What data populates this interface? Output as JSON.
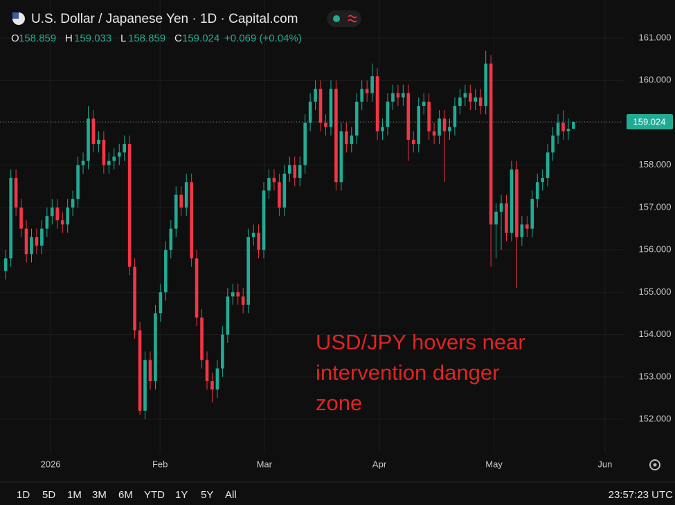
{
  "header": {
    "title": "U.S. Dollar / Japanese Yen · 1D · Capital.com",
    "ohlc_labels": [
      "O",
      "H",
      "L",
      "C"
    ],
    "change": "+0.069 (+0.04%)"
  },
  "chart_data": {
    "type": "candlestick",
    "annotation": [
      "USD/JPY hovers near",
      "intervention danger",
      "zone"
    ],
    "up_color": "#22ab94",
    "down_color": "#f23645",
    "grid": true,
    "xlim": [
      -1.1,
      119.6
    ],
    "xticks": [
      {
        "value": 8.7,
        "label": "2026"
      },
      {
        "value": 29.9,
        "label": "Feb"
      },
      {
        "value": 50.1,
        "label": "Mar"
      },
      {
        "value": 72.4,
        "label": "Apr"
      },
      {
        "value": 94.6,
        "label": "May"
      },
      {
        "value": 116.1,
        "label": "Jun"
      }
    ],
    "ylim": [
      151.2,
      161.9
    ],
    "yticks": [
      {
        "value": 152,
        "label": "152.000"
      },
      {
        "value": 153,
        "label": "153.000"
      },
      {
        "value": 154,
        "label": "154.000"
      },
      {
        "value": 155,
        "label": "155.000"
      },
      {
        "value": 156,
        "label": "156.000"
      },
      {
        "value": 157,
        "label": "157.000"
      },
      {
        "value": 158,
        "label": "158.000"
      },
      {
        "value": 159,
        "label": "159.000"
      },
      {
        "value": 160,
        "label": "160.000"
      },
      {
        "value": 161,
        "label": "161.000"
      }
    ],
    "candles": [
      {
        "o": 155.5,
        "h": 156.0,
        "l": 155.3,
        "c": 155.8
      },
      {
        "o": 155.8,
        "h": 157.9,
        "l": 155.6,
        "c": 157.7
      },
      {
        "o": 157.7,
        "h": 157.9,
        "l": 156.8,
        "c": 157.0
      },
      {
        "o": 157.0,
        "h": 157.2,
        "l": 156.3,
        "c": 156.5
      },
      {
        "o": 156.5,
        "h": 156.7,
        "l": 155.7,
        "c": 155.9
      },
      {
        "o": 155.9,
        "h": 156.5,
        "l": 155.7,
        "c": 156.3
      },
      {
        "o": 156.3,
        "h": 156.5,
        "l": 155.9,
        "c": 156.1
      },
      {
        "o": 156.1,
        "h": 156.7,
        "l": 155.9,
        "c": 156.5
      },
      {
        "o": 156.5,
        "h": 157.0,
        "l": 156.3,
        "c": 156.8
      },
      {
        "o": 156.8,
        "h": 157.2,
        "l": 156.6,
        "c": 157.0
      },
      {
        "o": 157.0,
        "h": 157.2,
        "l": 156.5,
        "c": 156.7
      },
      {
        "o": 156.7,
        "h": 156.9,
        "l": 156.4,
        "c": 156.6
      },
      {
        "o": 156.6,
        "h": 157.2,
        "l": 156.4,
        "c": 157.0
      },
      {
        "o": 157.0,
        "h": 157.4,
        "l": 156.8,
        "c": 157.2
      },
      {
        "o": 157.2,
        "h": 158.2,
        "l": 157.0,
        "c": 158.0
      },
      {
        "o": 158.0,
        "h": 158.3,
        "l": 157.8,
        "c": 158.1
      },
      {
        "o": 158.1,
        "h": 159.4,
        "l": 157.9,
        "c": 159.1
      },
      {
        "o": 159.1,
        "h": 159.3,
        "l": 158.3,
        "c": 158.5
      },
      {
        "o": 158.5,
        "h": 158.8,
        "l": 158.3,
        "c": 158.6
      },
      {
        "o": 158.6,
        "h": 158.8,
        "l": 157.8,
        "c": 158.0
      },
      {
        "o": 158.0,
        "h": 158.3,
        "l": 157.8,
        "c": 158.1
      },
      {
        "o": 158.1,
        "h": 158.4,
        "l": 157.9,
        "c": 158.2
      },
      {
        "o": 158.2,
        "h": 158.5,
        "l": 158.0,
        "c": 158.3
      },
      {
        "o": 158.3,
        "h": 158.7,
        "l": 158.1,
        "c": 158.5
      },
      {
        "o": 158.5,
        "h": 158.7,
        "l": 155.4,
        "c": 155.6
      },
      {
        "o": 155.6,
        "h": 155.8,
        "l": 153.9,
        "c": 154.1
      },
      {
        "o": 154.1,
        "h": 154.3,
        "l": 152.1,
        "c": 152.2
      },
      {
        "o": 152.2,
        "h": 153.6,
        "l": 152.0,
        "c": 153.4
      },
      {
        "o": 153.4,
        "h": 153.6,
        "l": 152.7,
        "c": 152.9
      },
      {
        "o": 152.9,
        "h": 154.7,
        "l": 152.7,
        "c": 154.5
      },
      {
        "o": 154.5,
        "h": 155.2,
        "l": 154.3,
        "c": 155.0
      },
      {
        "o": 155.0,
        "h": 156.2,
        "l": 154.8,
        "c": 156.0
      },
      {
        "o": 156.0,
        "h": 156.7,
        "l": 155.8,
        "c": 156.5
      },
      {
        "o": 156.5,
        "h": 157.5,
        "l": 156.3,
        "c": 157.3
      },
      {
        "o": 157.3,
        "h": 157.5,
        "l": 156.8,
        "c": 157.0
      },
      {
        "o": 157.0,
        "h": 157.8,
        "l": 156.8,
        "c": 157.6
      },
      {
        "o": 157.6,
        "h": 157.8,
        "l": 155.6,
        "c": 155.8
      },
      {
        "o": 155.8,
        "h": 156.0,
        "l": 154.2,
        "c": 154.4
      },
      {
        "o": 154.4,
        "h": 154.6,
        "l": 153.2,
        "c": 153.4
      },
      {
        "o": 153.4,
        "h": 153.6,
        "l": 152.7,
        "c": 152.9
      },
      {
        "o": 152.9,
        "h": 153.1,
        "l": 152.4,
        "c": 152.7
      },
      {
        "o": 152.7,
        "h": 153.4,
        "l": 152.5,
        "c": 153.2
      },
      {
        "o": 153.2,
        "h": 154.2,
        "l": 153.0,
        "c": 154.0
      },
      {
        "o": 154.0,
        "h": 155.1,
        "l": 153.8,
        "c": 154.9
      },
      {
        "o": 154.9,
        "h": 155.2,
        "l": 154.7,
        "c": 155.0
      },
      {
        "o": 155.0,
        "h": 155.2,
        "l": 154.7,
        "c": 154.9
      },
      {
        "o": 154.9,
        "h": 155.1,
        "l": 154.5,
        "c": 154.7
      },
      {
        "o": 154.7,
        "h": 156.5,
        "l": 154.5,
        "c": 156.3
      },
      {
        "o": 156.3,
        "h": 156.6,
        "l": 156.1,
        "c": 156.4
      },
      {
        "o": 156.4,
        "h": 156.6,
        "l": 155.8,
        "c": 156.0
      },
      {
        "o": 156.0,
        "h": 157.6,
        "l": 155.8,
        "c": 157.4
      },
      {
        "o": 157.4,
        "h": 157.9,
        "l": 157.2,
        "c": 157.7
      },
      {
        "o": 157.7,
        "h": 157.9,
        "l": 157.4,
        "c": 157.6
      },
      {
        "o": 157.6,
        "h": 157.8,
        "l": 156.8,
        "c": 157.0
      },
      {
        "o": 157.0,
        "h": 158.0,
        "l": 156.8,
        "c": 157.8
      },
      {
        "o": 157.8,
        "h": 158.2,
        "l": 157.6,
        "c": 158.0
      },
      {
        "o": 158.0,
        "h": 158.2,
        "l": 157.5,
        "c": 157.7
      },
      {
        "o": 157.7,
        "h": 158.2,
        "l": 157.5,
        "c": 158.0
      },
      {
        "o": 158.0,
        "h": 159.2,
        "l": 157.8,
        "c": 159.0
      },
      {
        "o": 159.0,
        "h": 159.7,
        "l": 158.8,
        "c": 159.5
      },
      {
        "o": 159.5,
        "h": 160.0,
        "l": 159.3,
        "c": 159.8
      },
      {
        "o": 159.8,
        "h": 160.0,
        "l": 158.8,
        "c": 159.0
      },
      {
        "o": 159.0,
        "h": 159.2,
        "l": 158.7,
        "c": 158.9
      },
      {
        "o": 158.9,
        "h": 160.0,
        "l": 158.7,
        "c": 159.8
      },
      {
        "o": 159.8,
        "h": 160.0,
        "l": 157.4,
        "c": 157.6
      },
      {
        "o": 157.6,
        "h": 159.0,
        "l": 157.4,
        "c": 158.8
      },
      {
        "o": 158.8,
        "h": 159.0,
        "l": 158.3,
        "c": 158.5
      },
      {
        "o": 158.5,
        "h": 158.9,
        "l": 158.3,
        "c": 158.7
      },
      {
        "o": 158.7,
        "h": 159.7,
        "l": 158.5,
        "c": 159.5
      },
      {
        "o": 159.5,
        "h": 160.0,
        "l": 159.3,
        "c": 159.8
      },
      {
        "o": 159.8,
        "h": 160.0,
        "l": 159.5,
        "c": 159.7
      },
      {
        "o": 159.7,
        "h": 160.4,
        "l": 159.5,
        "c": 160.1
      },
      {
        "o": 160.1,
        "h": 160.3,
        "l": 158.6,
        "c": 158.8
      },
      {
        "o": 158.8,
        "h": 159.1,
        "l": 158.6,
        "c": 158.9
      },
      {
        "o": 158.9,
        "h": 159.7,
        "l": 158.7,
        "c": 159.5
      },
      {
        "o": 159.5,
        "h": 159.9,
        "l": 159.3,
        "c": 159.7
      },
      {
        "o": 159.7,
        "h": 159.9,
        "l": 159.4,
        "c": 159.6
      },
      {
        "o": 159.6,
        "h": 159.9,
        "l": 159.4,
        "c": 159.7
      },
      {
        "o": 159.7,
        "h": 159.9,
        "l": 158.1,
        "c": 158.6
      },
      {
        "o": 158.6,
        "h": 158.8,
        "l": 158.3,
        "c": 158.5
      },
      {
        "o": 158.5,
        "h": 159.6,
        "l": 158.3,
        "c": 159.4
      },
      {
        "o": 159.4,
        "h": 159.7,
        "l": 159.2,
        "c": 159.5
      },
      {
        "o": 159.5,
        "h": 159.7,
        "l": 158.6,
        "c": 158.8
      },
      {
        "o": 158.8,
        "h": 159.0,
        "l": 158.5,
        "c": 158.7
      },
      {
        "o": 158.7,
        "h": 159.3,
        "l": 158.5,
        "c": 159.1
      },
      {
        "o": 159.1,
        "h": 159.3,
        "l": 157.6,
        "c": 158.8
      },
      {
        "o": 158.8,
        "h": 159.1,
        "l": 158.6,
        "c": 158.9
      },
      {
        "o": 158.9,
        "h": 159.6,
        "l": 158.7,
        "c": 159.4
      },
      {
        "o": 159.4,
        "h": 159.8,
        "l": 159.2,
        "c": 159.6
      },
      {
        "o": 159.6,
        "h": 159.9,
        "l": 159.4,
        "c": 159.7
      },
      {
        "o": 159.7,
        "h": 159.9,
        "l": 159.3,
        "c": 159.5
      },
      {
        "o": 159.5,
        "h": 159.8,
        "l": 159.3,
        "c": 159.6
      },
      {
        "o": 159.6,
        "h": 159.8,
        "l": 159.2,
        "c": 159.4
      },
      {
        "o": 159.4,
        "h": 160.7,
        "l": 159.2,
        "c": 160.4
      },
      {
        "o": 160.4,
        "h": 160.6,
        "l": 155.6,
        "c": 156.6
      },
      {
        "o": 156.6,
        "h": 157.1,
        "l": 155.8,
        "c": 156.9
      },
      {
        "o": 156.9,
        "h": 157.3,
        "l": 156.0,
        "c": 157.1
      },
      {
        "o": 157.1,
        "h": 157.3,
        "l": 156.2,
        "c": 156.4
      },
      {
        "o": 156.4,
        "h": 158.1,
        "l": 156.2,
        "c": 157.9
      },
      {
        "o": 157.9,
        "h": 158.1,
        "l": 155.1,
        "c": 156.3
      },
      {
        "o": 156.3,
        "h": 156.8,
        "l": 156.1,
        "c": 156.6
      },
      {
        "o": 156.6,
        "h": 156.8,
        "l": 156.3,
        "c": 156.5
      },
      {
        "o": 156.5,
        "h": 157.4,
        "l": 156.3,
        "c": 157.2
      },
      {
        "o": 157.2,
        "h": 157.8,
        "l": 157.0,
        "c": 157.6
      },
      {
        "o": 157.6,
        "h": 157.9,
        "l": 157.4,
        "c": 157.7
      },
      {
        "o": 157.7,
        "h": 158.5,
        "l": 157.5,
        "c": 158.3
      },
      {
        "o": 158.3,
        "h": 158.9,
        "l": 158.1,
        "c": 158.7
      },
      {
        "o": 158.7,
        "h": 159.2,
        "l": 158.5,
        "c": 159.0
      },
      {
        "o": 159.0,
        "h": 159.3,
        "l": 158.6,
        "c": 158.8
      },
      {
        "o": 158.8,
        "h": 159.1,
        "l": 158.6,
        "c": 158.859
      },
      {
        "o": 158.859,
        "h": 159.033,
        "l": 158.859,
        "c": 159.024
      }
    ]
  },
  "toolbar": {
    "ranges": [
      "1D",
      "5D",
      "1M",
      "3M",
      "6M",
      "YTD",
      "1Y",
      "5Y",
      "All"
    ],
    "clock": "23:57:23 UTC"
  }
}
